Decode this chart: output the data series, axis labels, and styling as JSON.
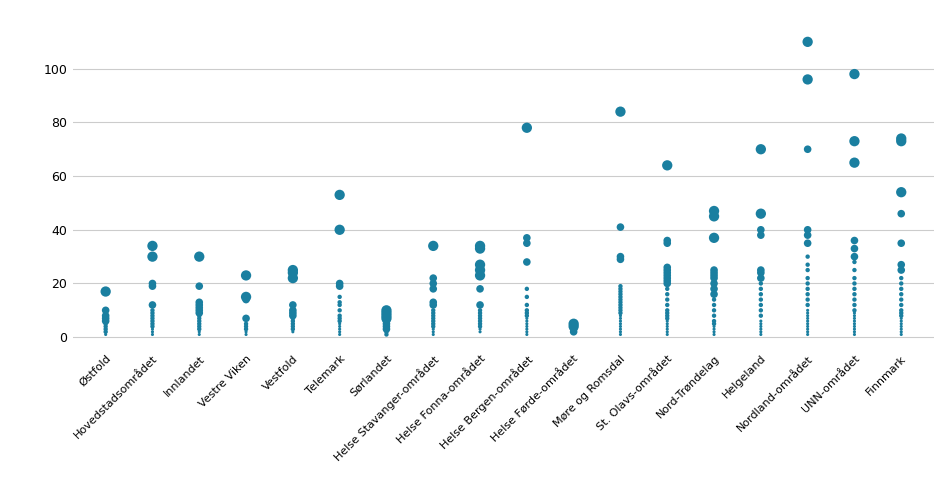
{
  "categories": [
    "Østfold",
    "Hovedstadsområdet",
    "Innlandet",
    "Vestre Viken",
    "Vestfold",
    "Telemark",
    "Sørlandet",
    "Helse Stavanger-området",
    "Helse Fonna-området",
    "Helse Bergen-området",
    "Helse Førde-området",
    "Møre og Romsdal",
    "St. Olavs-området",
    "Nord-Trøndelag",
    "Helgeland",
    "Nordland-området",
    "UNN-området",
    "Finnmark"
  ],
  "dot_color": "#1a7fa0",
  "background_color": "#ffffff",
  "ylim": [
    -5,
    120
  ],
  "yticks": [
    0,
    20,
    40,
    60,
    80,
    100
  ],
  "grid_color": "#cccccc",
  "data": {
    "Østfold": [
      17,
      10,
      8,
      7,
      6,
      5,
      4,
      3,
      2,
      1
    ],
    "Hovedstadsområdet": [
      34,
      30,
      20,
      19,
      12,
      10,
      9,
      8,
      7,
      6,
      5,
      4,
      3,
      2,
      1
    ],
    "Innlandet": [
      30,
      19,
      13,
      12,
      11,
      10,
      9,
      8,
      7,
      6,
      5,
      4,
      3,
      2,
      1
    ],
    "Vestre Viken": [
      23,
      15,
      14,
      7,
      5,
      4,
      3,
      2,
      1
    ],
    "Vestfold": [
      25,
      24,
      22,
      12,
      10,
      9,
      8,
      7,
      6,
      5,
      4,
      3,
      2
    ],
    "Telemark": [
      53,
      40,
      20,
      19,
      15,
      13,
      12,
      10,
      8,
      7,
      6,
      5,
      4,
      3,
      2,
      1
    ],
    "Sørlandet": [
      10,
      9,
      8,
      7,
      6,
      5,
      4,
      3,
      2,
      1
    ],
    "Helse Stavanger-området": [
      34,
      22,
      20,
      18,
      13,
      12,
      10,
      9,
      8,
      7,
      6,
      5,
      4,
      3,
      2,
      1
    ],
    "Helse Fonna-området": [
      34,
      33,
      27,
      25,
      23,
      18,
      12,
      10,
      9,
      8,
      7,
      6,
      5,
      4,
      3,
      2
    ],
    "Helse Bergen-området": [
      78,
      37,
      35,
      28,
      18,
      15,
      12,
      10,
      9,
      8,
      7,
      6,
      5,
      4,
      3,
      2,
      1
    ],
    "Helse Førde-området": [
      5,
      4,
      3,
      2
    ],
    "Møre og Romsdal": [
      84,
      41,
      30,
      29,
      19,
      18,
      17,
      16,
      15,
      14,
      13,
      12,
      11,
      10,
      9,
      8,
      7,
      6,
      5,
      4,
      3,
      2,
      1
    ],
    "St. Olavs-området": [
      64,
      36,
      35,
      26,
      25,
      24,
      23,
      22,
      21,
      20,
      18,
      16,
      14,
      12,
      10,
      9,
      8,
      7,
      6,
      5,
      4,
      3,
      2,
      1
    ],
    "Nord-Trøndelag": [
      47,
      45,
      37,
      25,
      24,
      23,
      22,
      20,
      18,
      16,
      14,
      12,
      10,
      8,
      6,
      5,
      4,
      3,
      2,
      1
    ],
    "Helgeland": [
      70,
      46,
      40,
      38,
      25,
      24,
      22,
      20,
      18,
      16,
      14,
      12,
      10,
      8,
      6,
      5,
      4,
      3,
      2,
      1
    ],
    "Nordland-området": [
      110,
      96,
      70,
      40,
      38,
      35,
      30,
      27,
      25,
      22,
      20,
      18,
      16,
      14,
      12,
      10,
      9,
      8,
      7,
      6,
      5,
      4,
      3,
      2,
      1
    ],
    "UNN-området": [
      98,
      73,
      65,
      36,
      33,
      30,
      28,
      25,
      22,
      20,
      18,
      16,
      14,
      12,
      10,
      9,
      8,
      7,
      6,
      5,
      4,
      3,
      2,
      1
    ],
    "Finnmark": [
      74,
      73,
      54,
      46,
      35,
      27,
      25,
      22,
      20,
      18,
      16,
      14,
      12,
      10,
      9,
      8,
      7,
      6,
      5,
      4,
      3,
      2,
      1
    ]
  },
  "dot_size_base": 18,
  "dot_size_large": 55,
  "dot_size_medium": 30,
  "dot_size_small": 10,
  "dot_size_tiny": 5,
  "large_threshold": 0.65,
  "medium_threshold": 0.3,
  "small_threshold": 0.1
}
